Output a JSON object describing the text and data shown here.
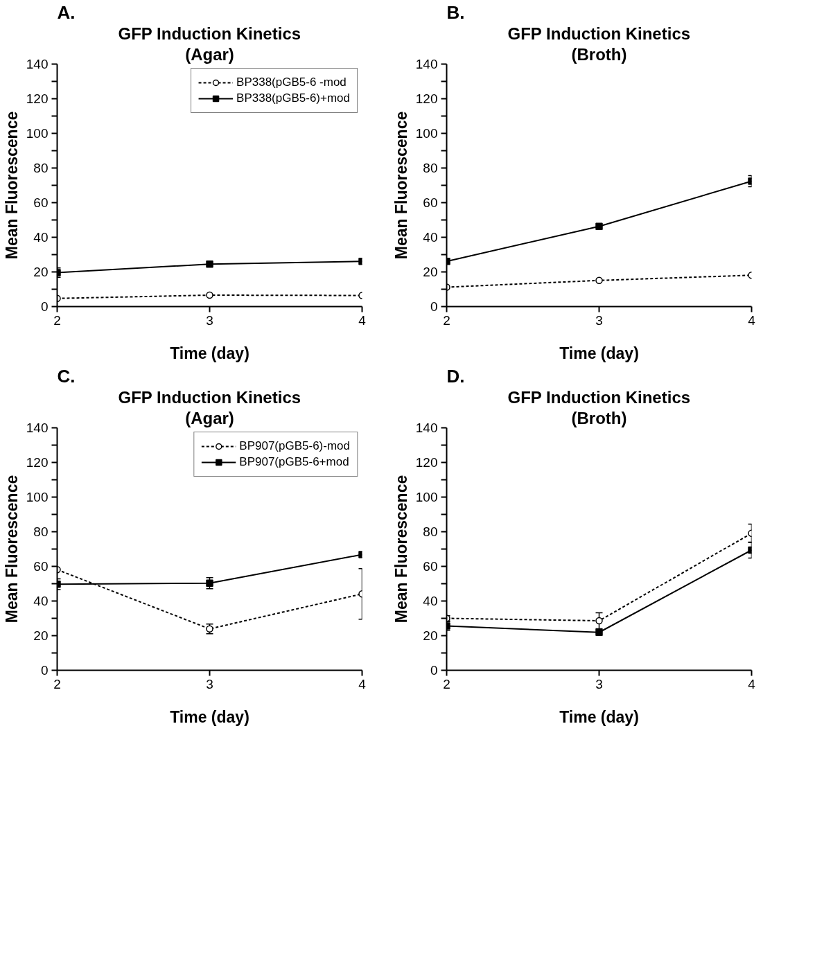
{
  "chart_data": [
    {
      "type": "line",
      "title": "GFP Induction Kinetics",
      "subtitle": "(Agar)",
      "annotations": [
        "A."
      ],
      "xlabel": "Time (day)",
      "ylabel": "Mean Fluorescence",
      "x": [
        2,
        3,
        4
      ],
      "xlim": [
        2,
        4
      ],
      "xticks": [
        2,
        3,
        4
      ],
      "ylim": [
        0,
        140
      ],
      "yticks": [
        0,
        {
          "value": 10,
          "label": null
        },
        20,
        {
          "value": 30,
          "label": null
        },
        40,
        {
          "value": 50,
          "label": null
        },
        60,
        {
          "value": 70,
          "label": null
        },
        80,
        {
          "value": 90,
          "label": null
        },
        100,
        {
          "value": 110,
          "label": null
        },
        120,
        {
          "value": 130,
          "label": null
        },
        140
      ],
      "grid": false,
      "legend": "top right",
      "series": [
        {
          "name": "BP338(pGB5-6 -mod",
          "color": "#000000",
          "marker": "circle",
          "line_style": "dashed",
          "values": [
            4.7,
            6.6,
            6.4
          ]
        },
        {
          "name": "BP338(pGB5-6)+mod",
          "color": "#000000",
          "marker": "square",
          "line_style": "solid",
          "values": [
            19.6,
            24.5,
            26.1
          ],
          "errors": [
            2.7,
            null,
            null
          ]
        }
      ]
    },
    {
      "type": "line",
      "title": "GFP Induction Kinetics",
      "subtitle": "(Broth)",
      "annotations": [
        "B."
      ],
      "xlabel": "Time (day)",
      "ylabel": "Mean Fluorescence",
      "x": [
        2,
        3,
        4
      ],
      "xlim": [
        2,
        4
      ],
      "xticks": [
        2,
        3,
        4
      ],
      "ylim": [
        0,
        140
      ],
      "yticks": [
        0,
        {
          "value": 10,
          "label": null
        },
        20,
        {
          "value": 30,
          "label": null
        },
        40,
        {
          "value": 50,
          "label": null
        },
        60,
        {
          "value": 70,
          "label": null
        },
        80,
        {
          "value": 90,
          "label": null
        },
        100,
        {
          "value": 110,
          "label": null
        },
        120,
        {
          "value": 130,
          "label": null
        },
        140
      ],
      "grid": false,
      "series": [
        {
          "color": "#000000",
          "marker": "circle",
          "line_style": "dashed",
          "values": [
            11.2,
            15.1,
            18.1
          ]
        },
        {
          "color": "#000000",
          "marker": "square",
          "line_style": "solid",
          "values": [
            26.1,
            46.3,
            72.4
          ],
          "errors": [
            null,
            null,
            3.2
          ]
        }
      ]
    },
    {
      "type": "line",
      "title": "GFP Induction Kinetics",
      "subtitle": "(Agar)",
      "annotations": [
        "C."
      ],
      "xlabel": "Time (day)",
      "ylabel": "Mean Fluorescence",
      "x": [
        2,
        3,
        4
      ],
      "xlim": [
        2,
        4
      ],
      "xticks": [
        2,
        3,
        4
      ],
      "ylim": [
        0,
        140
      ],
      "yticks": [
        0,
        {
          "value": 10,
          "label": null
        },
        20,
        {
          "value": 30,
          "label": null
        },
        40,
        {
          "value": 50,
          "label": null
        },
        60,
        {
          "value": 70,
          "label": null
        },
        80,
        {
          "value": 90,
          "label": null
        },
        100,
        {
          "value": 110,
          "label": null
        },
        120,
        {
          "value": 130,
          "label": null
        },
        140
      ],
      "grid": false,
      "legend": "top right",
      "series": [
        {
          "name": "BP907(pGB5-6)-mod",
          "color": "#000000",
          "marker": "circle",
          "line_style": "dashed",
          "values": [
            58.1,
            23.9,
            44.1
          ],
          "errors": [
            null,
            2.8,
            14.6
          ]
        },
        {
          "name": "BP907(pGB5-6+mod",
          "color": "#000000",
          "marker": "square",
          "line_style": "solid",
          "values": [
            49.7,
            50.3,
            66.8
          ],
          "errors": [
            3.1,
            3.2,
            null
          ]
        }
      ]
    },
    {
      "type": "line",
      "title": "GFP Induction Kinetics",
      "subtitle": "(Broth)",
      "annotations": [
        "D."
      ],
      "xlabel": "Time (day)",
      "ylabel": "Mean Fluorescence",
      "x": [
        2,
        3,
        4
      ],
      "xlim": [
        2,
        4
      ],
      "xticks": [
        2,
        3,
        4
      ],
      "ylim": [
        0,
        140
      ],
      "yticks": [
        0,
        {
          "value": 10,
          "label": null
        },
        20,
        {
          "value": 30,
          "label": null
        },
        40,
        {
          "value": 50,
          "label": null
        },
        60,
        {
          "value": 70,
          "label": null
        },
        80,
        {
          "value": 90,
          "label": null
        },
        100,
        {
          "value": 110,
          "label": null
        },
        120,
        {
          "value": 130,
          "label": null
        },
        140
      ],
      "grid": false,
      "series": [
        {
          "color": "#000000",
          "marker": "circle",
          "line_style": "dashed",
          "values": [
            30.0,
            28.6,
            79.1
          ],
          "errors": [
            1.5,
            4.6,
            5.3
          ]
        },
        {
          "color": "#000000",
          "marker": "square",
          "line_style": "solid",
          "values": [
            25.6,
            21.9,
            69.4
          ],
          "errors": [
            2.5,
            null,
            4.6
          ]
        }
      ]
    }
  ]
}
